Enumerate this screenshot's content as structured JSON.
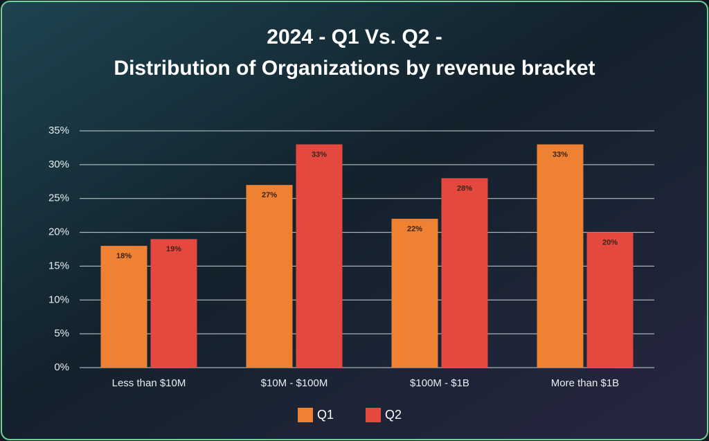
{
  "chart_data": {
    "type": "bar",
    "title": "2024 - Q1 Vs. Q2 -",
    "subtitle": "Distribution of Organizations by revenue bracket",
    "categories": [
      "Less than $10M",
      "$10M - $100M",
      "$100M - $1B",
      "More than $1B"
    ],
    "series": [
      {
        "name": "Q1",
        "color": "#ef8132",
        "values": [
          18,
          27,
          22,
          33
        ],
        "value_labels": [
          "18%",
          "27%",
          "22%",
          "33%"
        ]
      },
      {
        "name": "Q2",
        "color": "#e5483f",
        "values": [
          19,
          33,
          28,
          20
        ],
        "value_labels": [
          "19%",
          "33%",
          "28%",
          "20%"
        ]
      }
    ],
    "ylim": [
      0,
      35
    ],
    "yticks": [
      {
        "value": 0,
        "label": "0%"
      },
      {
        "value": 5,
        "label": "5%"
      },
      {
        "value": 10,
        "label": "10%"
      },
      {
        "value": 15,
        "label": "15%"
      },
      {
        "value": 20,
        "label": "20%"
      },
      {
        "value": 25,
        "label": "25%"
      },
      {
        "value": 30,
        "label": "30%"
      },
      {
        "value": 35,
        "label": "35%"
      }
    ],
    "grid": true,
    "legend": "bottom"
  }
}
